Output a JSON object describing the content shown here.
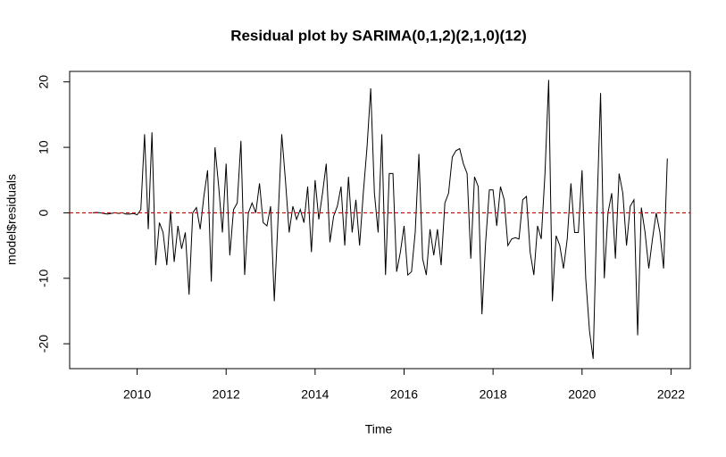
{
  "chart_data": {
    "type": "line",
    "title": "Residual plot by SARIMA(0,1,2)(2,1,0)(12)",
    "x_label": "Time",
    "y_label": "model$residuals",
    "x": [
      2009,
      2009.083,
      2009.167,
      2009.25,
      2009.333,
      2009.417,
      2009.5,
      2009.583,
      2009.667,
      2009.75,
      2009.833,
      2009.917,
      2010,
      2010.083,
      2010.167,
      2010.25,
      2010.333,
      2010.417,
      2010.5,
      2010.583,
      2010.667,
      2010.75,
      2010.833,
      2010.917,
      2011,
      2011.083,
      2011.167,
      2011.25,
      2011.333,
      2011.417,
      2011.5,
      2011.583,
      2011.667,
      2011.75,
      2011.833,
      2011.917,
      2012,
      2012.083,
      2012.167,
      2012.25,
      2012.333,
      2012.417,
      2012.5,
      2012.583,
      2012.667,
      2012.75,
      2012.833,
      2012.917,
      2013,
      2013.083,
      2013.167,
      2013.25,
      2013.333,
      2013.417,
      2013.5,
      2013.583,
      2013.667,
      2013.75,
      2013.833,
      2013.917,
      2014,
      2014.083,
      2014.167,
      2014.25,
      2014.333,
      2014.417,
      2014.5,
      2014.583,
      2014.667,
      2014.75,
      2014.833,
      2014.917,
      2015,
      2015.083,
      2015.167,
      2015.25,
      2015.333,
      2015.417,
      2015.5,
      2015.583,
      2015.667,
      2015.75,
      2015.833,
      2015.917,
      2016,
      2016.083,
      2016.167,
      2016.25,
      2016.333,
      2016.417,
      2016.5,
      2016.583,
      2016.667,
      2016.75,
      2016.833,
      2016.917,
      2017,
      2017.083,
      2017.167,
      2017.25,
      2017.333,
      2017.417,
      2017.5,
      2017.583,
      2017.667,
      2017.75,
      2017.833,
      2017.917,
      2018,
      2018.083,
      2018.167,
      2018.25,
      2018.333,
      2018.417,
      2018.5,
      2018.583,
      2018.667,
      2018.75,
      2018.833,
      2018.917,
      2019,
      2019.083,
      2019.167,
      2019.25,
      2019.333,
      2019.417,
      2019.5,
      2019.583,
      2019.667,
      2019.75,
      2019.833,
      2019.917,
      2020,
      2020.083,
      2020.167,
      2020.25,
      2020.333,
      2020.417,
      2020.5,
      2020.583,
      2020.667,
      2020.75,
      2020.833,
      2020.917,
      2021,
      2021.083,
      2021.167,
      2021.25,
      2021.333,
      2021.417,
      2021.5,
      2021.583,
      2021.667,
      2021.75,
      2021.833,
      2021.917
    ],
    "values": [
      0,
      0.05,
      0,
      -0.1,
      -0.2,
      -0.1,
      0,
      -0.1,
      0,
      -0.2,
      -0.2,
      -0.1,
      -0.3,
      0.5,
      12,
      -2.5,
      12.3,
      -8,
      -1.5,
      -3,
      -8,
      0.3,
      -7.5,
      -2,
      -5.5,
      -3,
      -12.5,
      0,
      0.8,
      -2.5,
      2.5,
      6.5,
      -10.5,
      10,
      4,
      -3,
      7.5,
      -6.5,
      0.5,
      1.5,
      11,
      -9.5,
      0,
      1.5,
      0,
      4.5,
      -1.5,
      -2,
      1,
      -13.5,
      -1,
      12,
      5,
      -3,
      1,
      -1,
      0.5,
      -1.5,
      4,
      -6,
      5,
      -1,
      3,
      7.5,
      -4.5,
      -0.5,
      1,
      4,
      -5,
      5.5,
      -3,
      2,
      -5,
      3,
      10,
      19,
      3,
      -3,
      12,
      -9.5,
      6,
      6,
      -9,
      -6,
      -2,
      -9.5,
      -9,
      -3,
      9,
      -7,
      -9.5,
      -2.5,
      -6.5,
      -2.5,
      -8,
      1.5,
      3,
      8.5,
      9.5,
      9.8,
      7.5,
      6,
      -7,
      5.5,
      4,
      -15.5,
      -4.5,
      3.5,
      3.5,
      -2,
      4,
      2,
      -5,
      -4,
      -3.8,
      -4,
      2,
      2.5,
      -6,
      -9.5,
      -2,
      -4,
      6,
      20.3,
      -13.5,
      -3.5,
      -5,
      -8.5,
      -4,
      4.5,
      -3,
      -3,
      6.5,
      -10,
      -18,
      -22.3,
      0,
      18.3,
      -10,
      0,
      3,
      -7,
      6,
      3,
      -5,
      1,
      2,
      -18.7,
      0.8,
      -3,
      -8.5,
      -4,
      0,
      -3,
      -8.5,
      8.3
    ],
    "color": "#000000",
    "xlim": [
      2008.483,
      2022.433
    ],
    "ylim": [
      -23.8,
      21.6
    ],
    "xticks": [
      2010,
      2012,
      2014,
      2016,
      2018,
      2020,
      2022
    ],
    "yticks": [
      -20,
      -10,
      0,
      10,
      20
    ],
    "hline": {
      "value": 0,
      "color": "#cc0000"
    }
  }
}
